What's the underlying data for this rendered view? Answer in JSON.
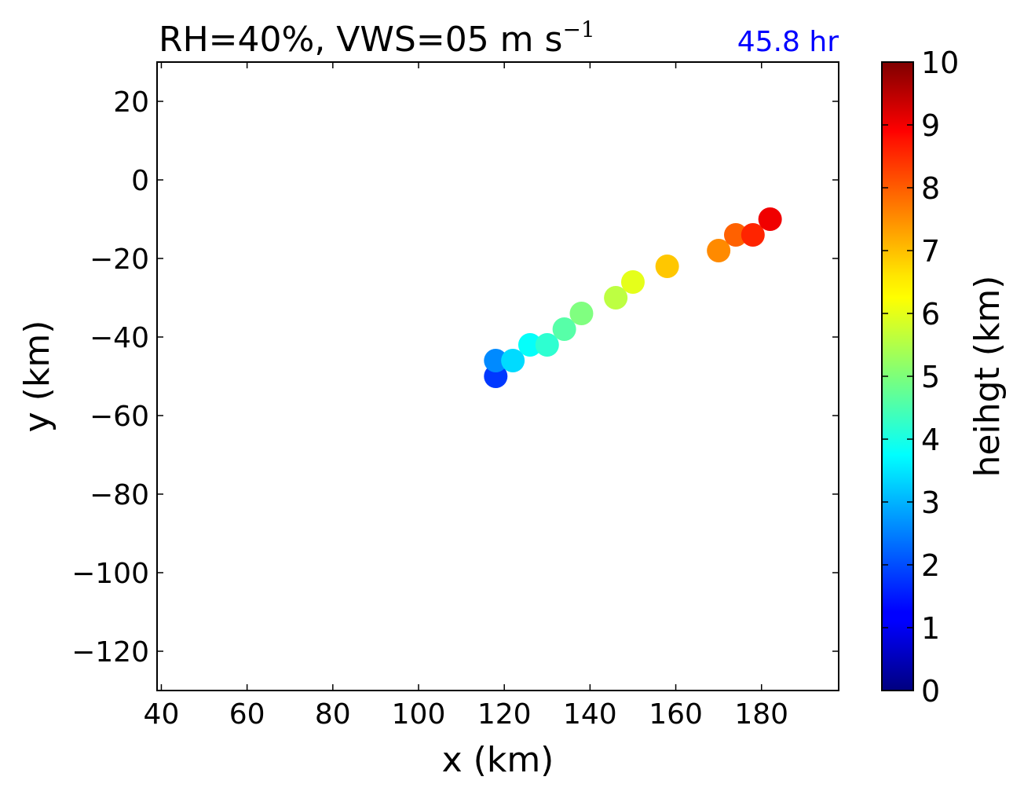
{
  "chart_data": {
    "type": "scatter",
    "title": "RH=40%, VWS=05 m s",
    "title_superscript": "−1",
    "annotation": "45.8 hr",
    "annotation_color": "#0000ff",
    "xlabel": "x (km)",
    "ylabel": "y (km)",
    "xlim": [
      39,
      198
    ],
    "ylim": [
      -130,
      30
    ],
    "xticks": [
      40,
      60,
      80,
      100,
      120,
      140,
      160,
      180
    ],
    "yticks": [
      20,
      0,
      -20,
      -40,
      -60,
      -80,
      -100,
      -120
    ],
    "xtick_labels": [
      "40",
      "60",
      "80",
      "100",
      "120",
      "140",
      "160",
      "180"
    ],
    "ytick_labels": [
      "20",
      "0",
      "−20",
      "−40",
      "−60",
      "−80",
      "−100",
      "−120"
    ],
    "grid": false,
    "points": [
      {
        "x": 118,
        "y": -50,
        "height": 1.8
      },
      {
        "x": 118,
        "y": -46,
        "height": 2.6
      },
      {
        "x": 122,
        "y": -46,
        "height": 3.4
      },
      {
        "x": 126,
        "y": -42,
        "height": 3.8
      },
      {
        "x": 130,
        "y": -42,
        "height": 4.2
      },
      {
        "x": 134,
        "y": -38,
        "height": 4.6
      },
      {
        "x": 138,
        "y": -34,
        "height": 5.0
      },
      {
        "x": 146,
        "y": -30,
        "height": 5.6
      },
      {
        "x": 150,
        "y": -26,
        "height": 6.0
      },
      {
        "x": 158,
        "y": -22,
        "height": 6.8
      },
      {
        "x": 170,
        "y": -18,
        "height": 7.4
      },
      {
        "x": 174,
        "y": -14,
        "height": 7.8
      },
      {
        "x": 178,
        "y": -14,
        "height": 8.4
      },
      {
        "x": 182,
        "y": -10,
        "height": 8.9
      }
    ],
    "colorbar": {
      "label": "heihgt (km)",
      "range": [
        0,
        10
      ],
      "ticks": [
        0,
        1,
        2,
        3,
        4,
        5,
        6,
        7,
        8,
        9,
        10
      ],
      "tick_labels": [
        "0",
        "1",
        "2",
        "3",
        "4",
        "5",
        "6",
        "7",
        "8",
        "9",
        "10"
      ],
      "colormap": "jet"
    }
  }
}
